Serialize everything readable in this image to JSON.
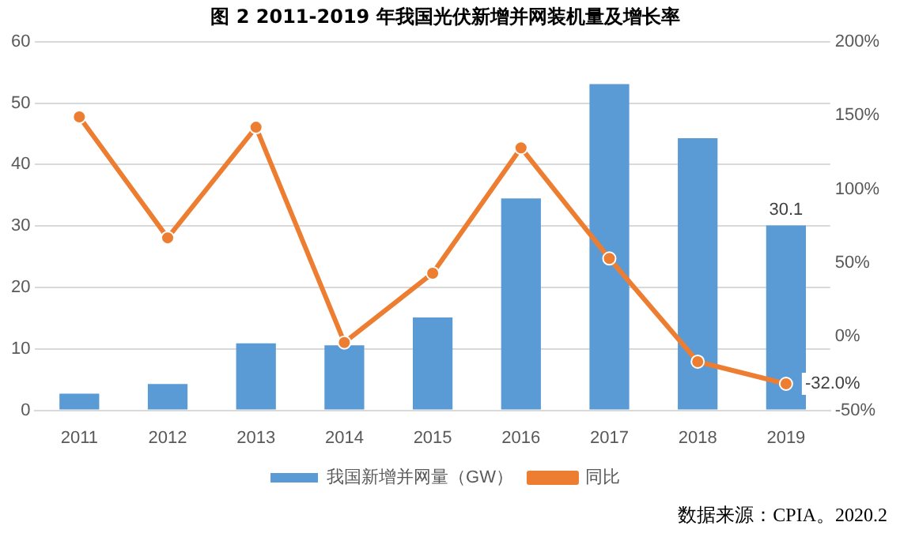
{
  "chart_data": {
    "type": "bar",
    "title": "图 2 2011-2019 年我国光伏新增并网装机量及增长率",
    "categories": [
      "2011",
      "2012",
      "2013",
      "2014",
      "2015",
      "2016",
      "2017",
      "2018",
      "2019"
    ],
    "series": [
      {
        "name": "我国新增并网量（GW）",
        "color": "#5b9bd5",
        "values": [
          2.7,
          4.3,
          10.9,
          10.6,
          15.1,
          34.5,
          53.1,
          44.3,
          30.1
        ],
        "value_labels": [
          null,
          null,
          null,
          null,
          null,
          null,
          null,
          null,
          "30.1"
        ]
      },
      {
        "name": "同比",
        "type": "line",
        "axis": "y2",
        "color": "#ed7d31",
        "values": [
          149,
          67,
          142,
          -4,
          43,
          128,
          53,
          -17,
          -32.0
        ],
        "value_labels": [
          null,
          null,
          null,
          null,
          null,
          null,
          null,
          null,
          "-32.0%"
        ]
      }
    ],
    "ylim": [
      0,
      60
    ],
    "yticks": [
      0,
      10,
      20,
      30,
      40,
      50,
      60
    ],
    "y2lim": [
      -50,
      200
    ],
    "y2ticks": [
      {
        "value": -50,
        "label": "-50%"
      },
      {
        "value": 0,
        "label": "0%"
      },
      {
        "value": 50,
        "label": "50%"
      },
      {
        "value": 100,
        "label": "100%"
      },
      {
        "value": 150,
        "label": "150%"
      },
      {
        "value": 200,
        "label": "200%"
      }
    ],
    "grid": "y",
    "legend": "bottom",
    "marker": "circle",
    "line_style": "solid",
    "annotations": [
      "数据来源：CPIA。2020.2"
    ]
  }
}
